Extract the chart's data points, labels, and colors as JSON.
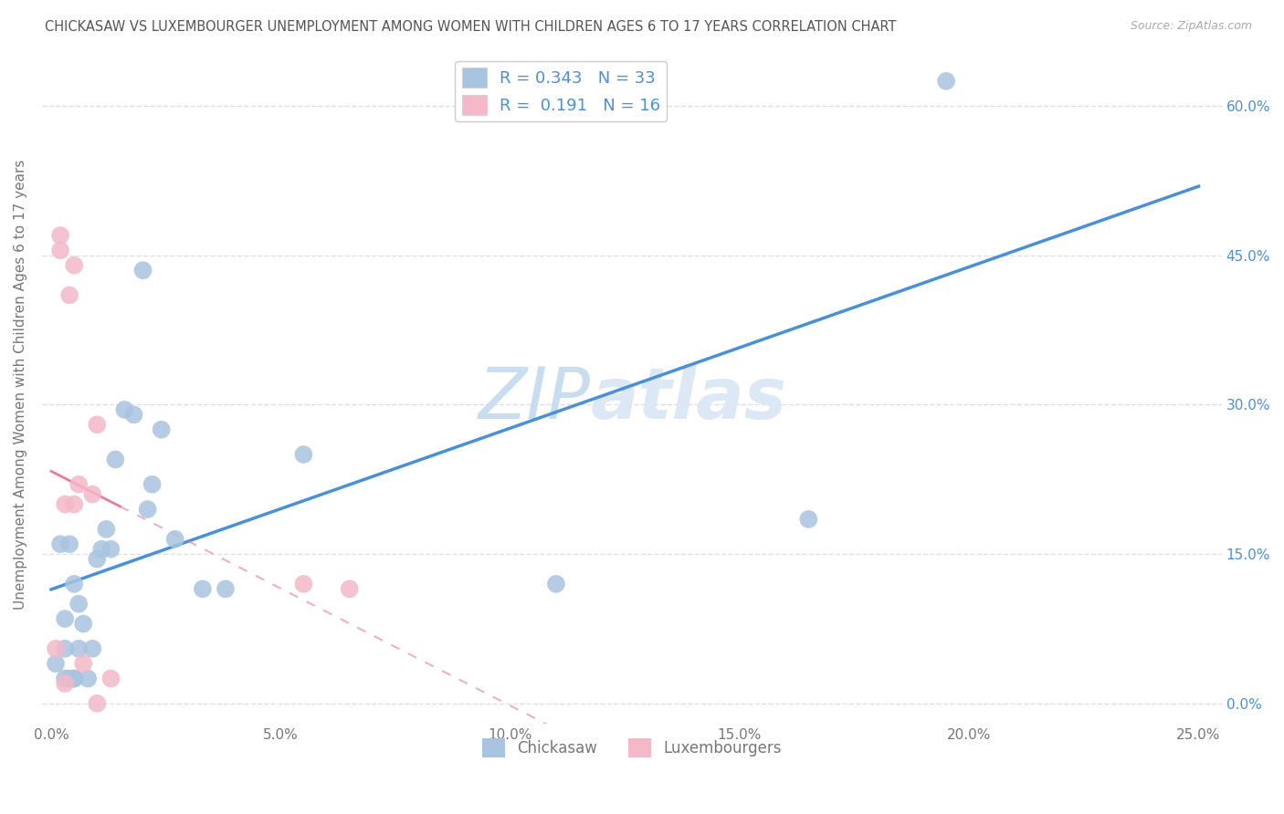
{
  "title": "CHICKASAW VS LUXEMBOURGER UNEMPLOYMENT AMONG WOMEN WITH CHILDREN AGES 6 TO 17 YEARS CORRELATION CHART",
  "source": "Source: ZipAtlas.com",
  "ylabel": "Unemployment Among Women with Children Ages 6 to 17 years",
  "xlabel_ticks": [
    "0.0%",
    "5.0%",
    "10.0%",
    "15.0%",
    "20.0%",
    "25.0%"
  ],
  "xlabel_vals": [
    0.0,
    0.05,
    0.1,
    0.15,
    0.2,
    0.25
  ],
  "ylabel_ticks": [
    "0.0%",
    "15.0%",
    "30.0%",
    "45.0%",
    "60.0%"
  ],
  "ylabel_vals": [
    0.0,
    0.15,
    0.3,
    0.45,
    0.6
  ],
  "xlim": [
    -0.002,
    0.255
  ],
  "ylim": [
    -0.02,
    0.66
  ],
  "chickasaw_R": 0.343,
  "chickasaw_N": 33,
  "luxembourger_R": 0.191,
  "luxembourger_N": 16,
  "chickasaw_color": "#a8c4e0",
  "luxembourger_color": "#f4b8c8",
  "chickasaw_line_color": "#4a90d9",
  "luxembourger_line_color": "#e87a9a",
  "watermark_zip": "ZIP",
  "watermark_atlas": "atlas",
  "watermark_color": "#dce8f5",
  "background_color": "#ffffff",
  "grid_color": "#e0e0e0",
  "chickasaw_x": [
    0.001,
    0.002,
    0.003,
    0.003,
    0.003,
    0.004,
    0.004,
    0.005,
    0.005,
    0.005,
    0.006,
    0.006,
    0.007,
    0.008,
    0.009,
    0.01,
    0.011,
    0.012,
    0.013,
    0.014,
    0.016,
    0.018,
    0.02,
    0.021,
    0.022,
    0.024,
    0.027,
    0.033,
    0.038,
    0.055,
    0.11,
    0.165,
    0.195
  ],
  "chickasaw_y": [
    0.04,
    0.16,
    0.025,
    0.055,
    0.085,
    0.025,
    0.16,
    0.025,
    0.025,
    0.12,
    0.055,
    0.1,
    0.08,
    0.025,
    0.055,
    0.145,
    0.155,
    0.175,
    0.155,
    0.245,
    0.295,
    0.29,
    0.435,
    0.195,
    0.22,
    0.275,
    0.165,
    0.115,
    0.115,
    0.25,
    0.12,
    0.185,
    0.625
  ],
  "luxembourger_x": [
    0.001,
    0.002,
    0.002,
    0.003,
    0.003,
    0.004,
    0.005,
    0.005,
    0.006,
    0.007,
    0.009,
    0.01,
    0.01,
    0.013,
    0.055,
    0.065
  ],
  "luxembourger_y": [
    0.055,
    0.455,
    0.47,
    0.02,
    0.2,
    0.41,
    0.44,
    0.2,
    0.22,
    0.04,
    0.21,
    0.0,
    0.28,
    0.025,
    0.12,
    0.115
  ]
}
